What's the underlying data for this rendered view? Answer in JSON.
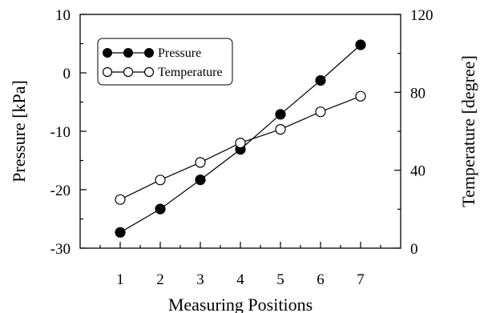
{
  "chart_data": {
    "type": "line",
    "title": "",
    "xlabel": "Measuring Positions",
    "ylabel": "Pressure [kPa]",
    "y2label": "Temperature [degree]",
    "x": [
      1,
      2,
      3,
      4,
      5,
      6,
      7
    ],
    "xlim": [
      0,
      8
    ],
    "ylim": [
      -30,
      10
    ],
    "y2lim": [
      0,
      120
    ],
    "xticks": [
      "1",
      "2",
      "3",
      "4",
      "5",
      "6",
      "7"
    ],
    "yticks": [
      "10",
      "0",
      "-10",
      "-20",
      "-30"
    ],
    "y2ticks": [
      "120",
      "80",
      "40",
      "0"
    ],
    "grid": false,
    "legend_position": "top-left",
    "series": [
      {
        "name": "Pressure",
        "axis": "left",
        "marker": "filled-circle",
        "values": [
          -27.3,
          -23.3,
          -18.3,
          -13.1,
          -7.1,
          -1.3,
          4.8
        ]
      },
      {
        "name": "Temperature",
        "axis": "right",
        "marker": "open-circle",
        "values": [
          25,
          35,
          44,
          54,
          61,
          70,
          78
        ]
      }
    ]
  }
}
